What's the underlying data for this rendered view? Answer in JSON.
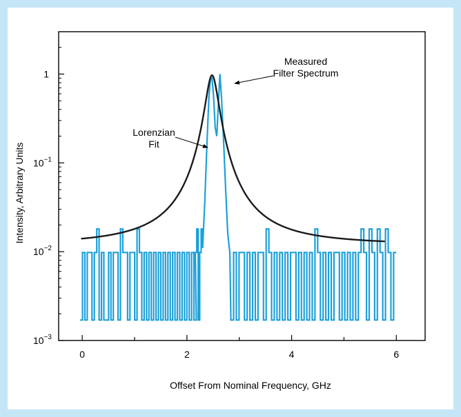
{
  "chart_data": {
    "type": "line",
    "title": "",
    "xlabel": "Offset From Nominal Frequency, GHz",
    "ylabel": "Intensity, Arbitrary Units",
    "xlim": [
      -0.45,
      6.55
    ],
    "ylim": [
      0.001,
      3
    ],
    "yscale": "log",
    "x_ticks": [
      0,
      2,
      4,
      6
    ],
    "x_tick_labels": [
      "0",
      "2",
      "4",
      "6"
    ],
    "y_tick_labels": [
      {
        "value": 1,
        "base": "1",
        "exp": ""
      },
      {
        "value": 0.1,
        "base": "10",
        "exp": "−1"
      },
      {
        "value": 0.01,
        "base": "10",
        "exp": "−2"
      },
      {
        "value": 0.001,
        "base": "10",
        "exp": "−3"
      }
    ],
    "series": [
      {
        "name": "Lorenzian Fit",
        "color": "#1a1a1a",
        "model": {
          "kind": "lorentzian",
          "center": 2.48,
          "hwhm": 0.12,
          "peak": 0.97,
          "baseline": 0.0118,
          "x_range": [
            -0.02,
            5.78
          ]
        }
      },
      {
        "name": "Measured Filter Spectrum",
        "color": "#1da0d8",
        "levels": {
          "low": 0.0017,
          "mid": 0.0098,
          "high": 0.018
        },
        "noise_segments": [
          {
            "x_start": -0.04,
            "x_end": 2.18,
            "pattern": "LMLMMLMHLMLLMLMMLHMMLMMLHMLMLMLMLMLMLMLMLMLMLMLML"
          },
          {
            "x_start": 2.16,
            "x_end": 2.3,
            "pattern": "MHLMH"
          },
          {
            "x_start": 2.84,
            "x_end": 6.0,
            "pattern": "LMLMMLMLMLMMLHMLMLMLMLMMLMLMLMLHMLMLMLMMLMLMLMLMHMLHMLHMLHMLM"
          }
        ],
        "peak_x": [
          2.3,
          2.34,
          2.38,
          2.42,
          2.45,
          2.48,
          2.51,
          2.54,
          2.57,
          2.6,
          2.63,
          2.66,
          2.7,
          2.74,
          2.78,
          2.82
        ],
        "peak_y": [
          0.011,
          0.035,
          0.15,
          0.55,
          0.88,
          0.9,
          0.55,
          0.25,
          0.2,
          0.45,
          1.0,
          0.55,
          0.18,
          0.05,
          0.016,
          0.0098
        ]
      }
    ],
    "annotations": [
      {
        "lines": [
          "Measured",
          "Filter Spectrum"
        ],
        "target": "Measured Filter Spectrum"
      },
      {
        "lines": [
          "Lorenzian",
          "Fit"
        ],
        "target": "Lorenzian Fit"
      }
    ]
  }
}
